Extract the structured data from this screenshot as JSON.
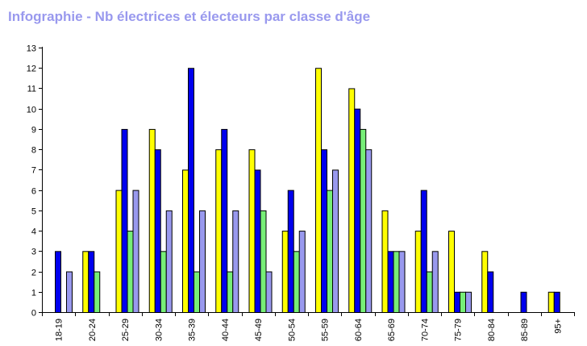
{
  "chart_data": {
    "type": "bar",
    "title": "Infographie - Nb électrices et électeurs par classe d'âge",
    "xlabel": "",
    "ylabel": "",
    "ylim": [
      0,
      13
    ],
    "y_ticks": [
      0,
      1,
      2,
      3,
      4,
      5,
      6,
      7,
      8,
      9,
      10,
      11,
      12,
      13
    ],
    "grid": false,
    "categories": [
      "18-19",
      "20-24",
      "25-29",
      "30-34",
      "35-39",
      "40-44",
      "45-49",
      "50-54",
      "55-59",
      "60-64",
      "65-69",
      "70-74",
      "75-79",
      "80-84",
      "85-89",
      "95+"
    ],
    "series": [
      {
        "color": "#ffff00",
        "values": [
          0,
          3,
          6,
          9,
          7,
          8,
          8,
          4,
          12,
          11,
          5,
          4,
          4,
          3,
          0,
          1
        ]
      },
      {
        "color": "#0000ee",
        "values": [
          3,
          3,
          9,
          8,
          12,
          9,
          7,
          6,
          8,
          10,
          3,
          6,
          1,
          2,
          1,
          1
        ]
      },
      {
        "color": "#77ee77",
        "values": [
          0,
          2,
          4,
          3,
          2,
          2,
          5,
          3,
          6,
          9,
          3,
          2,
          1,
          0,
          0,
          0
        ]
      },
      {
        "color": "#9999ee",
        "values": [
          2,
          0,
          6,
          5,
          5,
          5,
          2,
          4,
          7,
          8,
          3,
          3,
          1,
          0,
          0,
          0
        ]
      }
    ]
  }
}
